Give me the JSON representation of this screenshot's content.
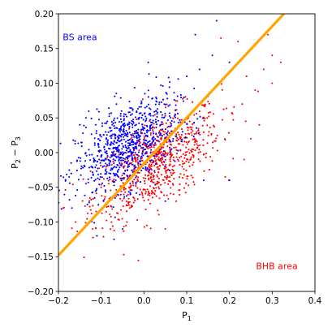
{
  "chart_data": {
    "type": "scatter",
    "title": "",
    "xlabel": "P_1",
    "ylabel": "P_2 - P_3",
    "xlim": [
      -0.2,
      0.4
    ],
    "ylim": [
      -0.2,
      0.2
    ],
    "xticks": [
      "-0.2",
      "-0.1",
      "0.0",
      "0.1",
      "0.2",
      "0.3",
      "0.4"
    ],
    "yticks": [
      "-0.20",
      "-0.15",
      "-0.10",
      "-0.05",
      "0.00",
      "0.05",
      "0.10",
      "0.15",
      "0.20"
    ],
    "grid": false,
    "series": [
      {
        "color": "#0000ff",
        "cluster": {
          "n": 820,
          "mean_x": -0.04,
          "mean_y": 0.01,
          "std_x": 0.06,
          "std_y": 0.035,
          "corr": 0.5
        },
        "points": [
          [
            0.17,
            0.19
          ],
          [
            0.12,
            0.17
          ],
          [
            0.01,
            0.13
          ],
          [
            0.16,
            0.14
          ],
          [
            0.2,
            0.13
          ],
          [
            0.13,
            0.12
          ],
          [
            0.1,
            0.11
          ],
          [
            -0.17,
            -0.03
          ],
          [
            -0.05,
            -0.11
          ],
          [
            -0.07,
            -0.125
          ],
          [
            -0.11,
            -0.12
          ],
          [
            0.2,
            -0.04
          ],
          [
            0.14,
            -0.04
          ],
          [
            0.05,
            -0.07
          ],
          [
            -0.15,
            0.04
          ]
        ]
      },
      {
        "color": "#ff0000",
        "cluster": {
          "n": 780,
          "mean_x": 0.03,
          "mean_y": -0.015,
          "std_x": 0.075,
          "std_y": 0.04,
          "corr": 0.62
        },
        "points": [
          [
            0.29,
            0.17
          ],
          [
            0.32,
            0.13
          ],
          [
            0.3,
            0.1
          ],
          [
            0.28,
            0.12
          ],
          [
            0.26,
            0.09
          ],
          [
            0.27,
            0.04
          ],
          [
            0.23,
            0.07
          ],
          [
            0.18,
            0.165
          ],
          [
            0.22,
            0.16
          ],
          [
            0.3,
            0.14
          ],
          [
            0.24,
            0.11
          ],
          [
            -0.16,
            -0.1
          ],
          [
            -0.12,
            -0.11
          ],
          [
            -0.04,
            -0.1
          ],
          [
            0.05,
            -0.11
          ],
          [
            0.19,
            -0.035
          ],
          [
            0.25,
            0.02
          ]
        ]
      }
    ],
    "boundary": {
      "color": "#ffa500",
      "slope": 0.66,
      "intercept": -0.016
    },
    "annotations": [
      {
        "text": "BS area",
        "color": "#0000ff",
        "x": -0.19,
        "y": 0.162
      },
      {
        "text": "BHB area",
        "color": "#ff0000",
        "x": 0.262,
        "y": -0.168
      }
    ]
  }
}
